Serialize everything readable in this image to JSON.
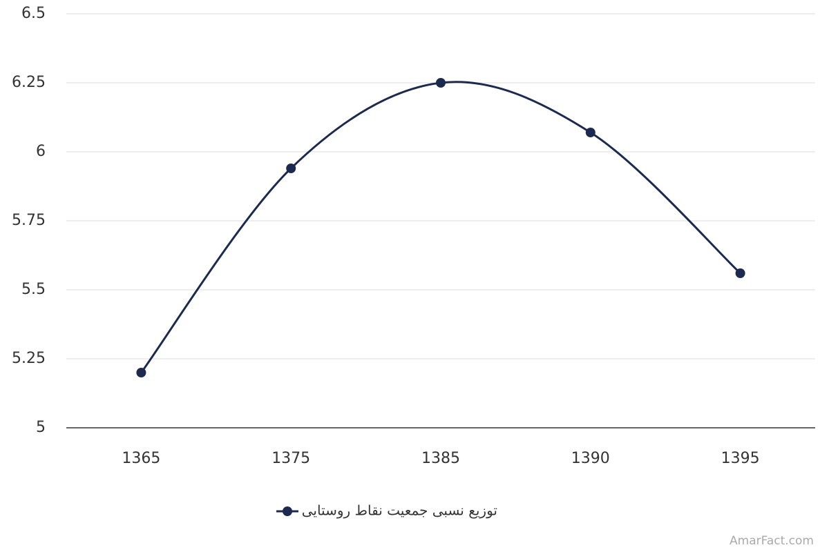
{
  "chart_data": {
    "type": "line",
    "smooth": true,
    "categories": [
      "1365",
      "1375",
      "1385",
      "1390",
      "1395"
    ],
    "series": [
      {
        "name": "توزیع نسبی جمعیت نقاط روستایی",
        "color": "#1b2a4e",
        "values": [
          5.2,
          5.94,
          6.25,
          6.07,
          5.56
        ]
      }
    ],
    "ylim": [
      5,
      6.5
    ],
    "yticks": [
      5,
      5.25,
      5.5,
      5.75,
      6,
      6.25,
      6.5
    ],
    "grid": true,
    "legend": "bottom",
    "watermark": "AmarFact.com"
  }
}
